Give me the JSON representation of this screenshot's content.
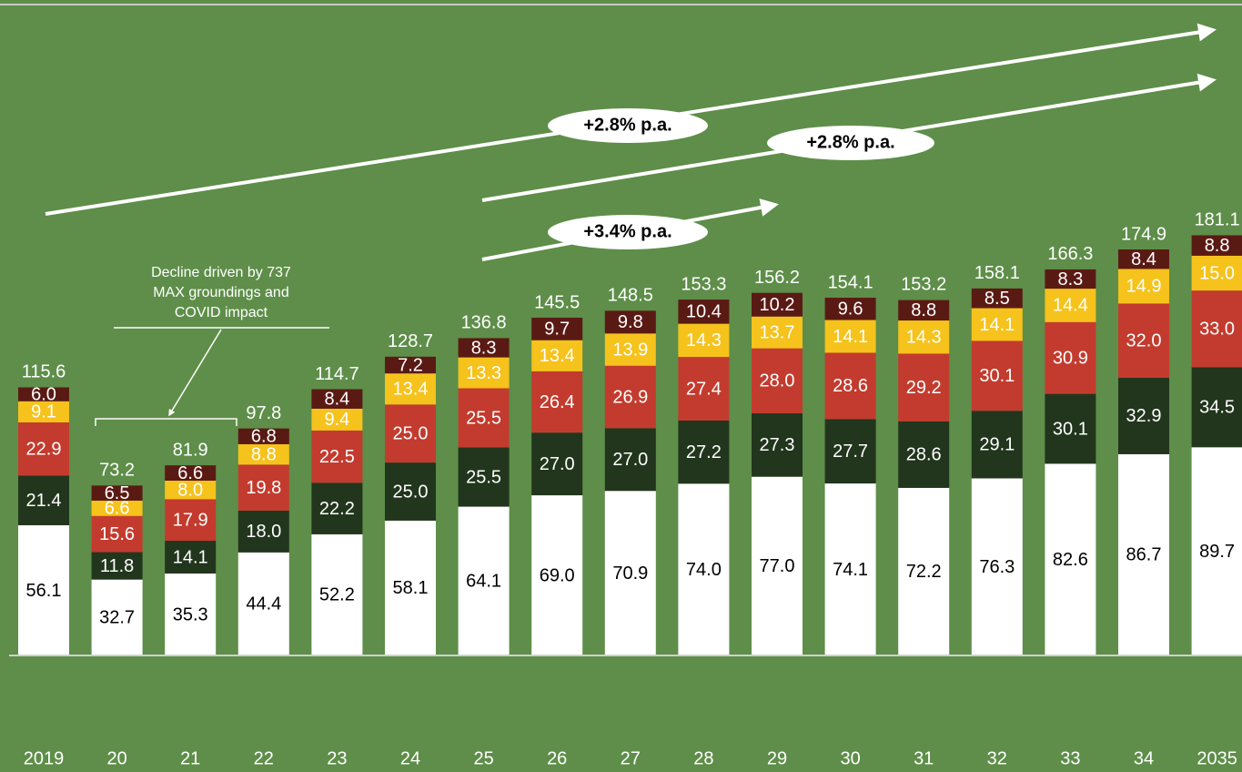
{
  "chart_data": {
    "type": "stacked_bar",
    "categories": [
      "2019",
      "20",
      "21",
      "22",
      "23",
      "24",
      "25",
      "26",
      "27",
      "28",
      "29",
      "30",
      "31",
      "32",
      "33",
      "34",
      "2035"
    ],
    "series": [
      {
        "color": "#ffffff",
        "text_color": "#000000",
        "values": [
          56.1,
          32.7,
          35.3,
          44.4,
          52.2,
          58.1,
          64.1,
          69.0,
          70.9,
          74.0,
          77.0,
          74.1,
          72.2,
          76.3,
          82.6,
          86.7,
          89.7
        ],
        "value_labels": [
          "56.1",
          "32.7",
          "35.3",
          "44.4",
          "52.2",
          "58.1",
          "64.1",
          "69.0",
          "70.9",
          "74.0",
          "77.0",
          "74.1",
          "72.2",
          "76.3",
          "82.6",
          "86.7",
          "89.7"
        ]
      },
      {
        "color": "#22351d",
        "text_color": "#ffffff",
        "values": [
          21.4,
          11.8,
          14.1,
          18.0,
          22.2,
          25.0,
          25.5,
          27.0,
          27.0,
          27.2,
          27.3,
          27.7,
          28.6,
          29.1,
          30.1,
          32.9,
          34.5
        ],
        "value_labels": [
          "21.4",
          "11.8",
          "14.1",
          "18.0",
          "22.2",
          "25.0",
          "25.5",
          "27.0",
          "27.0",
          "27.2",
          "27.3",
          "27.7",
          "28.6",
          "29.1",
          "30.1",
          "32.9",
          "34.5"
        ]
      },
      {
        "color": "#c33b2e",
        "text_color": "#ffffff",
        "values": [
          22.9,
          15.6,
          17.9,
          19.8,
          22.5,
          25.0,
          25.5,
          26.4,
          26.9,
          27.4,
          28.0,
          28.6,
          29.2,
          30.1,
          30.9,
          32.0,
          33.0
        ],
        "value_labels": [
          "22.9",
          "15.6",
          "17.9",
          "19.8",
          "22.5",
          "25.0",
          "25.5",
          "26.4",
          "26.9",
          "27.4",
          "28.0",
          "28.6",
          "29.2",
          "30.1",
          "30.9",
          "32.0",
          "33.0"
        ]
      },
      {
        "color": "#f6c21c",
        "text_color": "#ffffff",
        "values": [
          9.1,
          6.6,
          8.0,
          8.8,
          9.4,
          13.4,
          13.3,
          13.4,
          13.9,
          14.3,
          13.7,
          14.1,
          14.3,
          14.1,
          14.4,
          14.9,
          15.0
        ],
        "value_labels": [
          "9.1",
          "6.6",
          "8.0",
          "8.8",
          "9.4",
          "13.4",
          "13.3",
          "13.4",
          "13.9",
          "14.3",
          "13.7",
          "14.1",
          "14.3",
          "14.1",
          "14.4",
          "14.9",
          "15.0"
        ]
      },
      {
        "color": "#5a1a14",
        "text_color": "#ffffff",
        "values": [
          6.0,
          6.5,
          6.6,
          6.8,
          8.4,
          7.2,
          8.3,
          9.7,
          9.8,
          10.4,
          10.2,
          9.6,
          8.8,
          8.5,
          8.3,
          8.4,
          8.8
        ],
        "value_labels": [
          "6.0",
          "6.5",
          "6.6",
          "6.8",
          "8.4",
          "7.2",
          "8.3",
          "9.7",
          "9.8",
          "10.4",
          "10.2",
          "9.6",
          "8.8",
          "8.5",
          "8.3",
          "8.4",
          "8.8"
        ]
      }
    ],
    "totals": [
      115.6,
      73.2,
      81.9,
      97.8,
      114.7,
      128.7,
      136.8,
      145.5,
      148.5,
      153.3,
      156.2,
      154.1,
      153.2,
      158.1,
      166.3,
      174.9,
      181.1
    ],
    "growth_labels": [
      "+2.8% p.a.",
      "+2.8% p.a.",
      "+3.4% p.a."
    ],
    "annotation": [
      "Decline driven by 737",
      "MAX groundings and",
      "COVID impact"
    ]
  }
}
